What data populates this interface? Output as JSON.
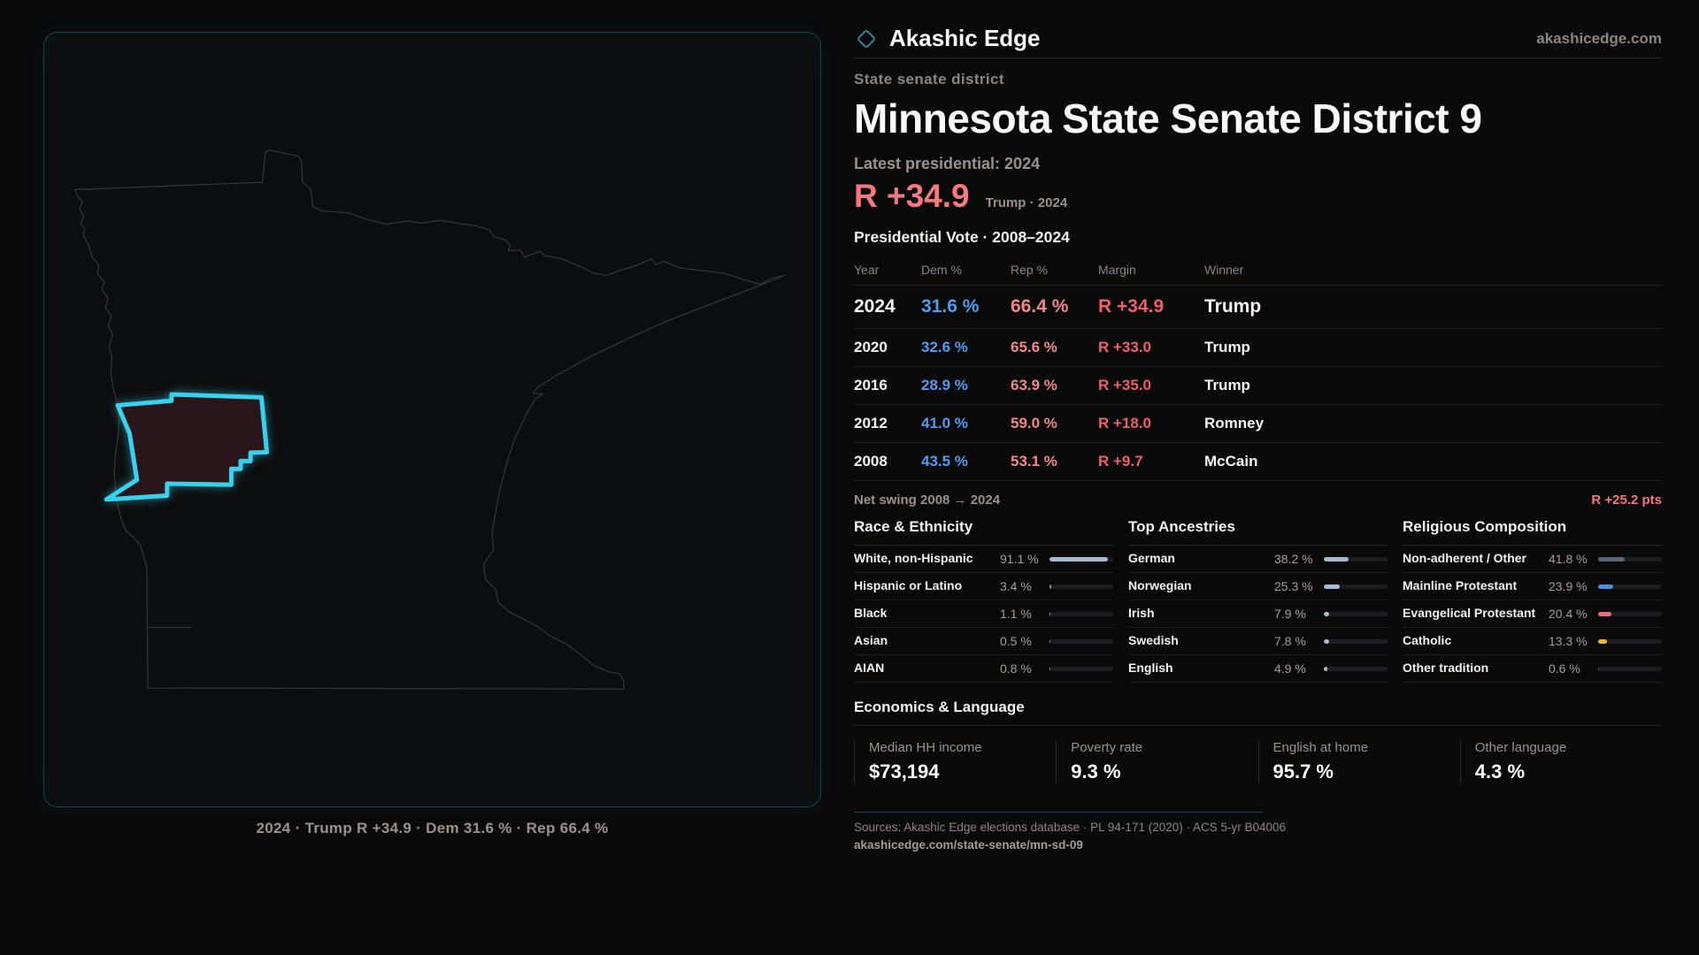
{
  "brand": {
    "name": "Akashic Edge",
    "domain": "akashicedge.com"
  },
  "header": {
    "kicker": "State senate district",
    "title": "Minnesota State Senate District 9",
    "latest_label": "Latest presidential: 2024",
    "headline_margin": "R +34.9",
    "headline_note": "Trump · 2024"
  },
  "map": {
    "caption": "2024 · Trump R +34.9 · Dem 31.6 % · Rep 66.4 %"
  },
  "table": {
    "title": "Presidential Vote · 2008–2024",
    "columns": [
      "Year",
      "Dem %",
      "Rep %",
      "Margin",
      "Winner"
    ],
    "rows": [
      {
        "year": "2024",
        "dem": "31.6 %",
        "rep": "66.4 %",
        "margin": "R +34.9",
        "winner": "Trump",
        "big": true
      },
      {
        "year": "2020",
        "dem": "32.6 %",
        "rep": "65.6 %",
        "margin": "R +33.0",
        "winner": "Trump",
        "big": false
      },
      {
        "year": "2016",
        "dem": "28.9 %",
        "rep": "63.9 %",
        "margin": "R +35.0",
        "winner": "Trump",
        "big": false
      },
      {
        "year": "2012",
        "dem": "41.0 %",
        "rep": "59.0 %",
        "margin": "R +18.0",
        "winner": "Romney",
        "big": false
      },
      {
        "year": "2008",
        "dem": "43.5 %",
        "rep": "53.1 %",
        "margin": "R +9.7",
        "winner": "McCain",
        "big": false
      }
    ]
  },
  "net_swing": {
    "label": "Net swing 2008 → 2024",
    "value": "R +25.2 pts"
  },
  "demographics": {
    "sections": [
      {
        "title": "Race & Ethnicity",
        "items": [
          {
            "label": "White, non-Hispanic",
            "value": "91.1 %",
            "pct": 91.1,
            "color": "#a6bad2"
          },
          {
            "label": "Hispanic or Latino",
            "value": "3.4 %",
            "pct": 3.4,
            "color": "#d9952c"
          },
          {
            "label": "Black",
            "value": "1.1 %",
            "pct": 1.1,
            "color": "#9193dd"
          },
          {
            "label": "Asian",
            "value": "0.5 %",
            "pct": 0.5,
            "color": "#6b7280"
          },
          {
            "label": "AIAN",
            "value": "0.8 %",
            "pct": 0.8,
            "color": "#c07a2e"
          }
        ]
      },
      {
        "title": "Top Ancestries",
        "items": [
          {
            "label": "German",
            "value": "38.2 %",
            "pct": 38.2,
            "color": "#a6bad2"
          },
          {
            "label": "Norwegian",
            "value": "25.3 %",
            "pct": 25.3,
            "color": "#a6bad2"
          },
          {
            "label": "Irish",
            "value": "7.9 %",
            "pct": 7.9,
            "color": "#a6bad2"
          },
          {
            "label": "Swedish",
            "value": "7.8 %",
            "pct": 7.8,
            "color": "#a6bad2"
          },
          {
            "label": "English",
            "value": "4.9 %",
            "pct": 4.9,
            "color": "#a6bad2"
          }
        ]
      },
      {
        "title": "Religious Composition",
        "items": [
          {
            "label": "Non-adherent / Other",
            "value": "41.8 %",
            "pct": 41.8,
            "color": "#5b6474"
          },
          {
            "label": "Mainline Protestant",
            "value": "23.9 %",
            "pct": 23.9,
            "color": "#4a90dd"
          },
          {
            "label": "Evangelical Protestant",
            "value": "20.4 %",
            "pct": 20.4,
            "color": "#e2717a"
          },
          {
            "label": "Catholic",
            "value": "13.3 %",
            "pct": 13.3,
            "color": "#e8b732"
          },
          {
            "label": "Other tradition",
            "value": "0.6 %",
            "pct": 0.6,
            "color": "#55595f"
          }
        ]
      }
    ]
  },
  "economics": {
    "title": "Economics & Language",
    "stats": [
      {
        "label": "Median HH income",
        "value": "$73,194"
      },
      {
        "label": "Poverty rate",
        "value": "9.3 %"
      },
      {
        "label": "English at home",
        "value": "95.7 %"
      },
      {
        "label": "Other language",
        "value": "4.3 %"
      }
    ]
  },
  "footer": {
    "sources": "Sources: Akashic Edge elections database · PL 94-171 (2020) · ACS 5-yr B04006",
    "url": "akashicedge.com/state-senate/mn-sd-09"
  },
  "colors": {
    "background": "#0a0a0b",
    "accent_cyan": "#38d2ee",
    "accent_red": "#f3797e",
    "dem_blue": "#4f9cf0",
    "rep_salmon": "#f2878b",
    "margin_red": "#ee5f66",
    "muted_text": "#9b918c"
  }
}
